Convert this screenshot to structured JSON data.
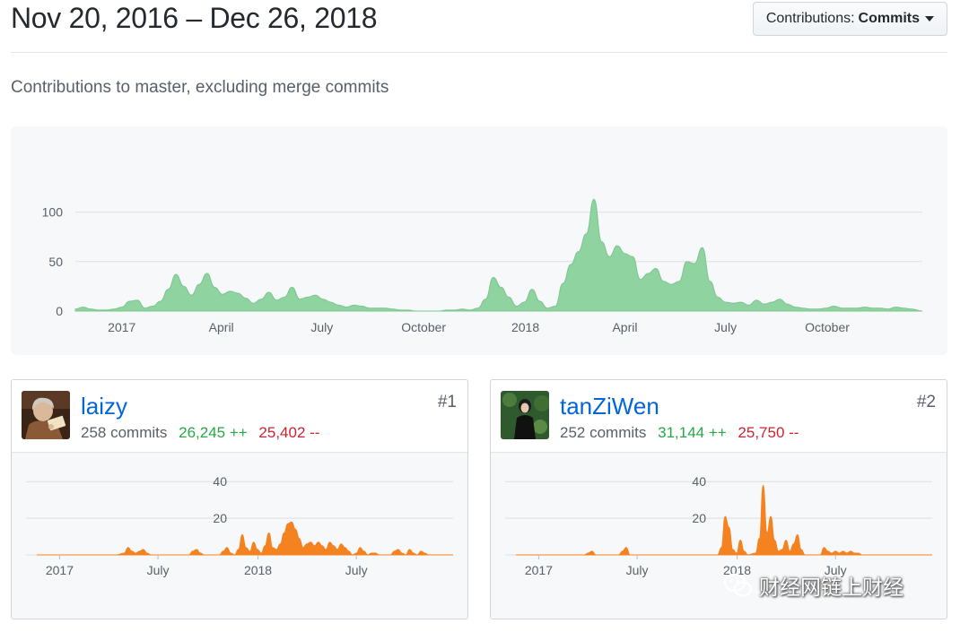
{
  "header": {
    "date_range": "Nov 20, 2016 – Dec 26, 2018",
    "select_prefix": "Contributions:",
    "select_value": "Commits"
  },
  "subtitle": "Contributions to master, excluding merge commits",
  "colors": {
    "area_main": "#8fd3a0",
    "area_main_stroke": "#7cc690",
    "area_user": "#f58220",
    "grid": "#dcdfe3",
    "tick": "#586069",
    "additions": "#28a745",
    "deletions": "#cb2431",
    "link": "#0366d6"
  },
  "chart_data": [
    {
      "type": "area",
      "x_start": "2016-11-20",
      "x_end": "2018-12-26",
      "ylim": [
        0,
        115
      ],
      "yticks": [
        0,
        50,
        100
      ],
      "xticks": [
        {
          "date": "2017-01-01",
          "label": "2017"
        },
        {
          "date": "2017-04-01",
          "label": "April"
        },
        {
          "date": "2017-07-01",
          "label": "July"
        },
        {
          "date": "2017-10-01",
          "label": "October"
        },
        {
          "date": "2018-01-01",
          "label": "2018"
        },
        {
          "date": "2018-04-01",
          "label": "April"
        },
        {
          "date": "2018-07-01",
          "label": "July"
        },
        {
          "date": "2018-10-01",
          "label": "October"
        }
      ],
      "points": [
        [
          "2016-11-20",
          2
        ],
        [
          "2016-11-27",
          4
        ],
        [
          "2016-12-04",
          2
        ],
        [
          "2016-12-11",
          1
        ],
        [
          "2016-12-18",
          1
        ],
        [
          "2016-12-25",
          2
        ],
        [
          "2017-01-01",
          4
        ],
        [
          "2017-01-08",
          10
        ],
        [
          "2017-01-15",
          11
        ],
        [
          "2017-01-22",
          3
        ],
        [
          "2017-01-29",
          5
        ],
        [
          "2017-02-05",
          10
        ],
        [
          "2017-02-12",
          22
        ],
        [
          "2017-02-19",
          37
        ],
        [
          "2017-02-26",
          25
        ],
        [
          "2017-03-05",
          16
        ],
        [
          "2017-03-12",
          27
        ],
        [
          "2017-03-19",
          38
        ],
        [
          "2017-03-26",
          24
        ],
        [
          "2017-04-02",
          17
        ],
        [
          "2017-04-09",
          20
        ],
        [
          "2017-04-16",
          18
        ],
        [
          "2017-04-23",
          13
        ],
        [
          "2017-04-30",
          8
        ],
        [
          "2017-05-07",
          12
        ],
        [
          "2017-05-14",
          19
        ],
        [
          "2017-05-21",
          11
        ],
        [
          "2017-05-28",
          14
        ],
        [
          "2017-06-04",
          24
        ],
        [
          "2017-06-11",
          12
        ],
        [
          "2017-06-18",
          14
        ],
        [
          "2017-06-25",
          16
        ],
        [
          "2017-07-02",
          12
        ],
        [
          "2017-07-09",
          9
        ],
        [
          "2017-07-16",
          6
        ],
        [
          "2017-07-23",
          4
        ],
        [
          "2017-07-30",
          6
        ],
        [
          "2017-08-06",
          5
        ],
        [
          "2017-08-13",
          3
        ],
        [
          "2017-08-20",
          3
        ],
        [
          "2017-08-27",
          3
        ],
        [
          "2017-09-03",
          2
        ],
        [
          "2017-09-10",
          1
        ],
        [
          "2017-09-17",
          1
        ],
        [
          "2017-09-24",
          0
        ],
        [
          "2017-10-01",
          0
        ],
        [
          "2017-10-08",
          0
        ],
        [
          "2017-10-15",
          0
        ],
        [
          "2017-10-22",
          1
        ],
        [
          "2017-10-29",
          1
        ],
        [
          "2017-11-05",
          2
        ],
        [
          "2017-11-12",
          1
        ],
        [
          "2017-11-19",
          3
        ],
        [
          "2017-11-26",
          12
        ],
        [
          "2017-12-03",
          34
        ],
        [
          "2017-12-10",
          24
        ],
        [
          "2017-12-17",
          14
        ],
        [
          "2017-12-24",
          5
        ],
        [
          "2017-12-31",
          9
        ],
        [
          "2018-01-07",
          22
        ],
        [
          "2018-01-14",
          10
        ],
        [
          "2018-01-21",
          3
        ],
        [
          "2018-01-28",
          5
        ],
        [
          "2018-02-04",
          28
        ],
        [
          "2018-02-11",
          47
        ],
        [
          "2018-02-18",
          60
        ],
        [
          "2018-02-25",
          78
        ],
        [
          "2018-03-04",
          113
        ],
        [
          "2018-03-11",
          70
        ],
        [
          "2018-03-18",
          55
        ],
        [
          "2018-03-25",
          66
        ],
        [
          "2018-04-01",
          58
        ],
        [
          "2018-04-08",
          55
        ],
        [
          "2018-04-15",
          32
        ],
        [
          "2018-04-22",
          38
        ],
        [
          "2018-04-29",
          43
        ],
        [
          "2018-05-06",
          30
        ],
        [
          "2018-05-13",
          27
        ],
        [
          "2018-05-20",
          30
        ],
        [
          "2018-05-27",
          50
        ],
        [
          "2018-06-03",
          48
        ],
        [
          "2018-06-10",
          64
        ],
        [
          "2018-06-17",
          30
        ],
        [
          "2018-06-24",
          14
        ],
        [
          "2018-07-01",
          9
        ],
        [
          "2018-07-08",
          8
        ],
        [
          "2018-07-15",
          9
        ],
        [
          "2018-07-22",
          6
        ],
        [
          "2018-07-29",
          11
        ],
        [
          "2018-08-05",
          7
        ],
        [
          "2018-08-12",
          9
        ],
        [
          "2018-08-19",
          12
        ],
        [
          "2018-08-26",
          7
        ],
        [
          "2018-09-02",
          4
        ],
        [
          "2018-09-09",
          3
        ],
        [
          "2018-09-16",
          2
        ],
        [
          "2018-09-23",
          2
        ],
        [
          "2018-09-30",
          3
        ],
        [
          "2018-10-07",
          5
        ],
        [
          "2018-10-14",
          3
        ],
        [
          "2018-10-21",
          3
        ],
        [
          "2018-10-28",
          3
        ],
        [
          "2018-11-04",
          4
        ],
        [
          "2018-11-11",
          3
        ],
        [
          "2018-11-18",
          3
        ],
        [
          "2018-11-25",
          2
        ],
        [
          "2018-12-02",
          4
        ],
        [
          "2018-12-09",
          3
        ],
        [
          "2018-12-16",
          2
        ],
        [
          "2018-12-26",
          0
        ]
      ]
    },
    {
      "type": "area",
      "x_start": "2016-11-20",
      "x_end": "2018-12-26",
      "ylim": [
        0,
        45
      ],
      "yticks": [
        20,
        40
      ],
      "xticks": [
        {
          "date": "2017-01-01",
          "label": "2017"
        },
        {
          "date": "2017-07-01",
          "label": "July"
        },
        {
          "date": "2018-01-01",
          "label": "2018"
        },
        {
          "date": "2018-07-01",
          "label": "July"
        }
      ],
      "points": [
        [
          "2016-11-20",
          0
        ],
        [
          "2017-04-16",
          0
        ],
        [
          "2017-04-30",
          1
        ],
        [
          "2017-05-07",
          4
        ],
        [
          "2017-05-14",
          2
        ],
        [
          "2017-05-21",
          1
        ],
        [
          "2017-05-28",
          2
        ],
        [
          "2017-06-04",
          3
        ],
        [
          "2017-06-11",
          1
        ],
        [
          "2017-06-18",
          0
        ],
        [
          "2017-08-27",
          0
        ],
        [
          "2017-09-03",
          2
        ],
        [
          "2017-09-10",
          3
        ],
        [
          "2017-09-17",
          1
        ],
        [
          "2017-09-24",
          0
        ],
        [
          "2017-10-22",
          0
        ],
        [
          "2017-10-29",
          2
        ],
        [
          "2017-11-05",
          4
        ],
        [
          "2017-11-12",
          1
        ],
        [
          "2017-11-19",
          0
        ],
        [
          "2017-11-26",
          3
        ],
        [
          "2017-12-03",
          11
        ],
        [
          "2017-12-10",
          4
        ],
        [
          "2017-12-17",
          2
        ],
        [
          "2017-12-24",
          7
        ],
        [
          "2017-12-31",
          3
        ],
        [
          "2018-01-07",
          1
        ],
        [
          "2018-01-14",
          5
        ],
        [
          "2018-01-21",
          12
        ],
        [
          "2018-01-28",
          4
        ],
        [
          "2018-02-04",
          3
        ],
        [
          "2018-02-11",
          6
        ],
        [
          "2018-02-18",
          12
        ],
        [
          "2018-02-25",
          17
        ],
        [
          "2018-03-04",
          18
        ],
        [
          "2018-03-11",
          14
        ],
        [
          "2018-03-18",
          9
        ],
        [
          "2018-03-25",
          4
        ],
        [
          "2018-04-01",
          6
        ],
        [
          "2018-04-08",
          7
        ],
        [
          "2018-04-15",
          5
        ],
        [
          "2018-04-22",
          7
        ],
        [
          "2018-04-29",
          5
        ],
        [
          "2018-05-06",
          3
        ],
        [
          "2018-05-13",
          7
        ],
        [
          "2018-05-20",
          5
        ],
        [
          "2018-05-27",
          3
        ],
        [
          "2018-06-03",
          6
        ],
        [
          "2018-06-10",
          4
        ],
        [
          "2018-06-17",
          2
        ],
        [
          "2018-06-24",
          0
        ],
        [
          "2018-07-01",
          1
        ],
        [
          "2018-07-08",
          4
        ],
        [
          "2018-07-15",
          2
        ],
        [
          "2018-07-22",
          0
        ],
        [
          "2018-07-29",
          1
        ],
        [
          "2018-08-05",
          1
        ],
        [
          "2018-08-12",
          0
        ],
        [
          "2018-09-02",
          0
        ],
        [
          "2018-09-09",
          2
        ],
        [
          "2018-09-16",
          3
        ],
        [
          "2018-09-23",
          1
        ],
        [
          "2018-09-30",
          0
        ],
        [
          "2018-10-07",
          3
        ],
        [
          "2018-10-14",
          1
        ],
        [
          "2018-10-21",
          0
        ],
        [
          "2018-10-28",
          2
        ],
        [
          "2018-11-04",
          1
        ],
        [
          "2018-11-11",
          0
        ],
        [
          "2018-12-26",
          0
        ]
      ]
    },
    {
      "type": "area",
      "x_start": "2016-11-20",
      "x_end": "2018-12-26",
      "ylim": [
        0,
        45
      ],
      "yticks": [
        20,
        40
      ],
      "xticks": [
        {
          "date": "2017-01-01",
          "label": "2017"
        },
        {
          "date": "2017-07-01",
          "label": "July"
        },
        {
          "date": "2018-01-01",
          "label": "2018"
        },
        {
          "date": "2018-07-01",
          "label": "July"
        }
      ],
      "points": [
        [
          "2016-11-20",
          0
        ],
        [
          "2017-03-26",
          0
        ],
        [
          "2017-04-02",
          1
        ],
        [
          "2017-04-09",
          2
        ],
        [
          "2017-04-16",
          0
        ],
        [
          "2017-05-28",
          0
        ],
        [
          "2017-06-04",
          2
        ],
        [
          "2017-06-11",
          4
        ],
        [
          "2017-06-18",
          0
        ],
        [
          "2017-11-26",
          0
        ],
        [
          "2017-12-03",
          4
        ],
        [
          "2017-12-10",
          21
        ],
        [
          "2017-12-17",
          15
        ],
        [
          "2017-12-24",
          3
        ],
        [
          "2017-12-31",
          1
        ],
        [
          "2018-01-07",
          8
        ],
        [
          "2018-01-14",
          2
        ],
        [
          "2018-01-21",
          0
        ],
        [
          "2018-02-04",
          1
        ],
        [
          "2018-02-11",
          9
        ],
        [
          "2018-02-18",
          38
        ],
        [
          "2018-02-25",
          12
        ],
        [
          "2018-03-04",
          21
        ],
        [
          "2018-03-11",
          8
        ],
        [
          "2018-03-18",
          2
        ],
        [
          "2018-03-25",
          3
        ],
        [
          "2018-04-01",
          8
        ],
        [
          "2018-04-08",
          2
        ],
        [
          "2018-04-15",
          6
        ],
        [
          "2018-04-22",
          11
        ],
        [
          "2018-04-29",
          3
        ],
        [
          "2018-05-06",
          0
        ],
        [
          "2018-06-03",
          0
        ],
        [
          "2018-06-10",
          4
        ],
        [
          "2018-06-17",
          2
        ],
        [
          "2018-06-24",
          1
        ],
        [
          "2018-07-01",
          2
        ],
        [
          "2018-07-08",
          1
        ],
        [
          "2018-07-15",
          2
        ],
        [
          "2018-07-22",
          1
        ],
        [
          "2018-07-29",
          2
        ],
        [
          "2018-08-05",
          1
        ],
        [
          "2018-08-12",
          1
        ],
        [
          "2018-08-19",
          0
        ],
        [
          "2018-12-26",
          0
        ]
      ]
    }
  ],
  "contributors": [
    {
      "name": "laizy",
      "commits": "258 commits",
      "additions": "26,245 ++",
      "deletions": "25,402 --",
      "rank": "#1",
      "avatar_icon": "portrait-reading-avatar-icon"
    },
    {
      "name": "tanZiWen",
      "commits": "252 commits",
      "additions": "31,144 ++",
      "deletions": "25,750 --",
      "rank": "#2",
      "avatar_icon": "portrait-standing-avatar-icon"
    }
  ],
  "watermark": {
    "text": "财经网链上财经",
    "icon": "wechat-icon"
  }
}
